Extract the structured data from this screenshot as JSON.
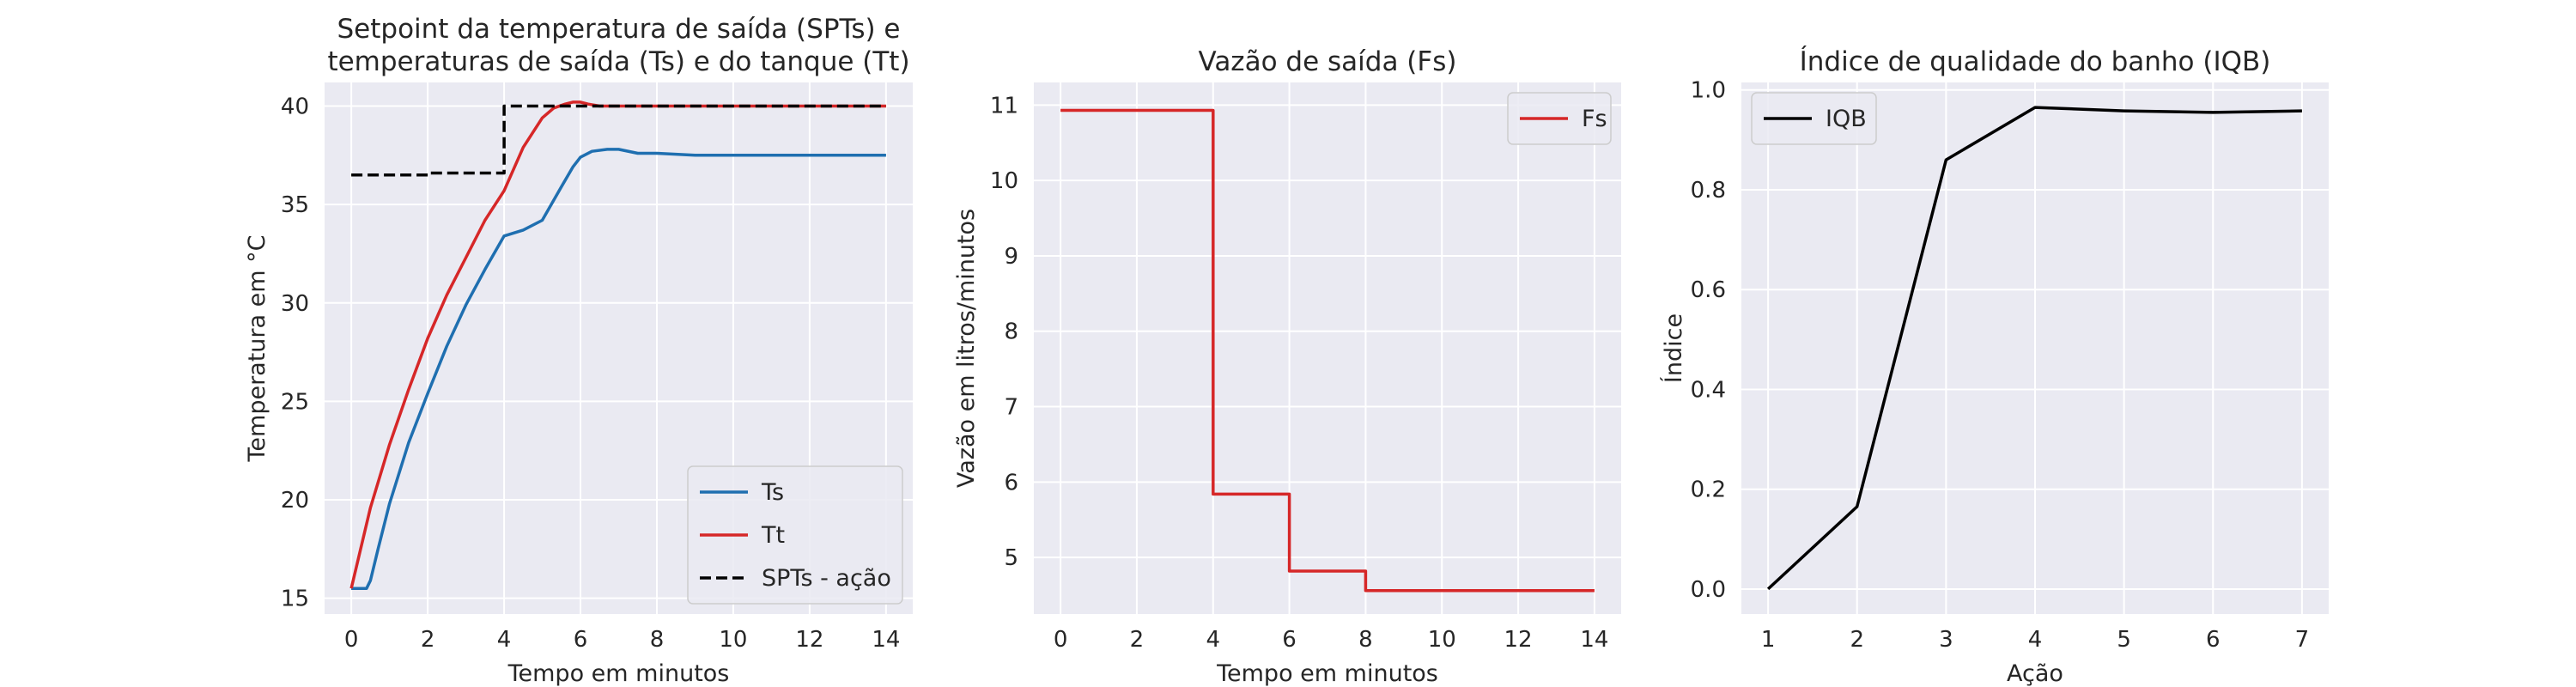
{
  "colors": {
    "axes_bg": "#eaeaf2",
    "grid": "#ffffff",
    "blue": "#1f6fb0",
    "red": "#d62728",
    "black": "#000000",
    "legend_bg": "#eaeaf2",
    "legend_border": "#cccccc"
  },
  "chart_data": [
    {
      "type": "line",
      "title": "Setpoint da temperatura de saída (SPTs) e\ntemperaturas de saída (Ts) e do tanque (Tt)",
      "title_lines": [
        "Setpoint da temperatura de saída (SPTs) e",
        "temperaturas de saída (Ts) e do tanque (Tt)"
      ],
      "xlabel": "Tempo em minutos",
      "ylabel": "Temperatura em °C",
      "xlim": [
        -0.7,
        14.7
      ],
      "ylim": [
        14.2,
        41.2
      ],
      "xticks": [
        0,
        2,
        4,
        6,
        8,
        10,
        12,
        14
      ],
      "xtick_labels": [
        "0",
        "2",
        "4",
        "6",
        "8",
        "10",
        "12",
        "14"
      ],
      "yticks": [
        15,
        20,
        25,
        30,
        35,
        40
      ],
      "ytick_labels": [
        "15",
        "20",
        "25",
        "30",
        "35",
        "40"
      ],
      "grid": true,
      "legend": "lower-right",
      "series": [
        {
          "name": "Ts",
          "color": "blue",
          "dash": "solid",
          "x": [
            0,
            0.2,
            0.4,
            0.5,
            0.7,
            1.0,
            1.5,
            2.0,
            2.5,
            3.0,
            3.5,
            4.0,
            4.5,
            5.0,
            5.5,
            5.8,
            6.0,
            6.3,
            6.7,
            7.0,
            7.5,
            8.0,
            9.0,
            10.0,
            12.0,
            14.0
          ],
          "y": [
            15.5,
            15.5,
            15.5,
            15.9,
            17.5,
            19.8,
            22.9,
            25.4,
            27.8,
            29.9,
            31.7,
            33.4,
            33.7,
            34.2,
            35.9,
            36.9,
            37.4,
            37.7,
            37.8,
            37.8,
            37.6,
            37.6,
            37.5,
            37.5,
            37.5,
            37.5
          ]
        },
        {
          "name": "Tt",
          "color": "red",
          "dash": "solid",
          "x": [
            0,
            0.5,
            1.0,
            1.5,
            2.0,
            2.5,
            3.0,
            3.5,
            4.0,
            4.5,
            5.0,
            5.3,
            5.6,
            5.8,
            6.0,
            6.2,
            6.5,
            7.0,
            8.0,
            10.0,
            14.0
          ],
          "y": [
            15.5,
            19.6,
            22.8,
            25.6,
            28.2,
            30.4,
            32.3,
            34.2,
            35.7,
            37.9,
            39.4,
            39.9,
            40.1,
            40.2,
            40.2,
            40.1,
            40.0,
            40.0,
            40.0,
            40.0,
            40.0
          ]
        },
        {
          "name": "SPTs - ação",
          "color": "black",
          "dash": "dashed",
          "x": [
            0,
            2,
            2,
            4,
            4,
            14
          ],
          "y": [
            36.5,
            36.5,
            36.6,
            36.6,
            40.0,
            40.0
          ]
        }
      ]
    },
    {
      "type": "line",
      "title": "Vazão de saída (Fs)",
      "title_lines": [
        "Vazão de saída (Fs)"
      ],
      "xlabel": "Tempo em minutos",
      "ylabel": "Vazão em litros/minutos",
      "xlim": [
        -0.7,
        14.7
      ],
      "ylim": [
        4.25,
        11.3
      ],
      "xticks": [
        0,
        2,
        4,
        6,
        8,
        10,
        12,
        14
      ],
      "xtick_labels": [
        "0",
        "2",
        "4",
        "6",
        "8",
        "10",
        "12",
        "14"
      ],
      "yticks": [
        5,
        6,
        7,
        8,
        9,
        10,
        11
      ],
      "ytick_labels": [
        "5",
        "6",
        "7",
        "8",
        "9",
        "10",
        "11"
      ],
      "grid": true,
      "legend": "upper-right",
      "series": [
        {
          "name": "Fs",
          "color": "red",
          "dash": "solid",
          "x": [
            0,
            4,
            4,
            6,
            6,
            8,
            8,
            14
          ],
          "y": [
            10.93,
            10.93,
            5.84,
            5.84,
            4.82,
            4.82,
            4.56,
            4.56
          ]
        }
      ]
    },
    {
      "type": "line",
      "title": "Índice de qualidade do banho (IQB)",
      "title_lines": [
        "Índice de qualidade do banho (IQB)"
      ],
      "xlabel": "Ação",
      "ylabel": "Índice",
      "xlim": [
        0.7,
        7.3
      ],
      "ylim": [
        -0.05,
        1.015
      ],
      "xticks": [
        1,
        2,
        3,
        4,
        5,
        6,
        7
      ],
      "xtick_labels": [
        "1",
        "2",
        "3",
        "4",
        "5",
        "6",
        "7"
      ],
      "yticks": [
        0.0,
        0.2,
        0.4,
        0.6,
        0.8,
        1.0
      ],
      "ytick_labels": [
        "0.0",
        "0.2",
        "0.4",
        "0.6",
        "0.8",
        "1.0"
      ],
      "grid": true,
      "legend": "upper-left",
      "series": [
        {
          "name": "IQB",
          "color": "black",
          "dash": "solid",
          "x": [
            1,
            2,
            3,
            4,
            5,
            6,
            7
          ],
          "y": [
            0.0,
            0.165,
            0.86,
            0.965,
            0.958,
            0.955,
            0.958
          ]
        }
      ]
    }
  ]
}
